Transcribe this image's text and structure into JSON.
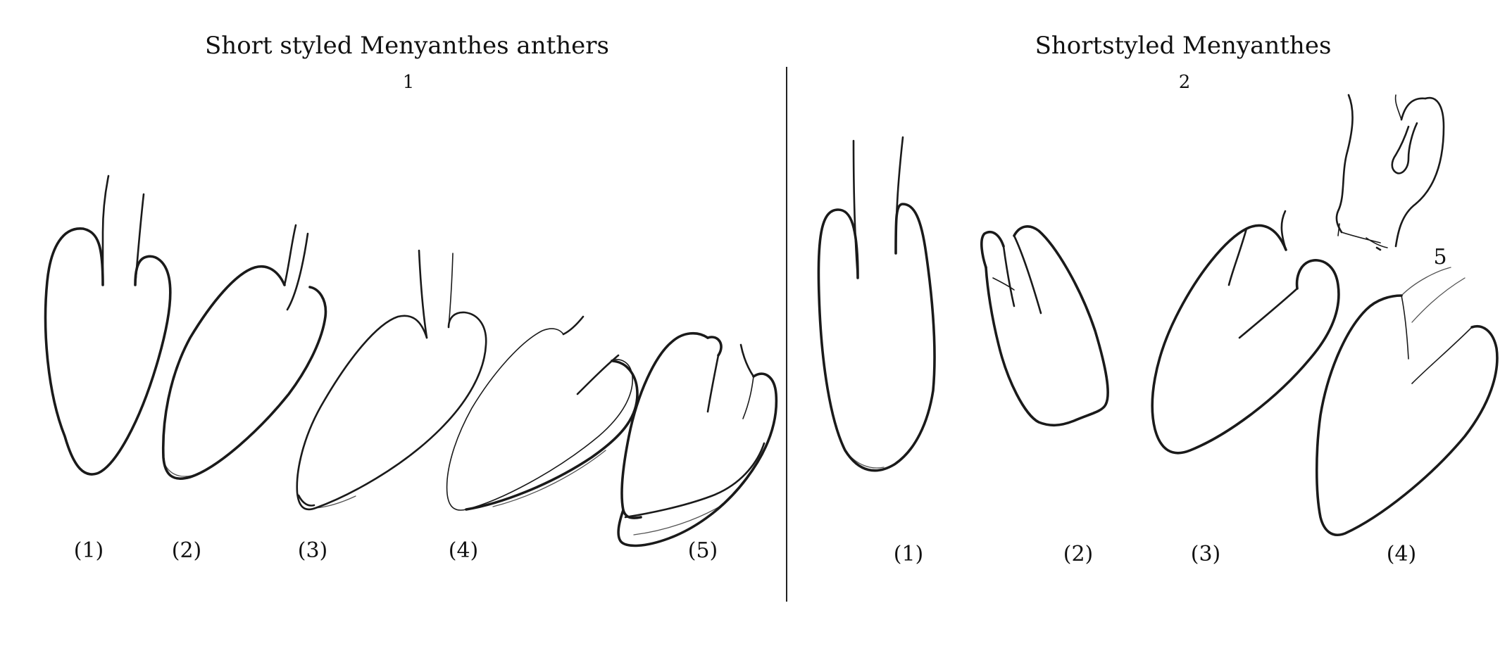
{
  "panels": [
    {
      "title": "Short styled Menyanthes anthers",
      "number": "1",
      "labels": [
        "(1)",
        "(2)",
        "(3)",
        "(4)",
        "(5)"
      ]
    },
    {
      "title": "Shortstyled Menyanthes",
      "number": "2",
      "labels": [
        "(1)",
        "(2)",
        "(3)",
        "(4)"
      ],
      "extra_label": "5"
    }
  ],
  "icons": [
    "anther-outline-sketch"
  ],
  "colors": {
    "ink": "#1a1a1a",
    "paper": "#ffffff"
  }
}
